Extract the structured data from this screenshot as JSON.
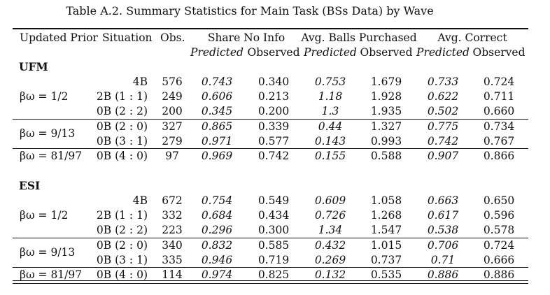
{
  "title": "Table A.2. Summary Statistics for Main Task (BSs Data) by Wave",
  "headers": {
    "updated_prior": "Updated Prior",
    "situation": "Situation",
    "obs": "Obs.",
    "share_no_info": "Share No Info",
    "avg_balls": "Avg. Balls Purchased",
    "avg_correct": "Avg. Correct",
    "predicted": "Predicted",
    "observed": "Observed"
  },
  "sections": [
    {
      "name": "UFM",
      "groups": [
        {
          "prior": "βω = 1/2",
          "rows": [
            {
              "situation": "4B",
              "obs": "576",
              "sni_pred": "0.743",
              "sni_obs": "0.340",
              "balls_pred": "0.753",
              "balls_obs": "1.679",
              "corr_pred": "0.733",
              "corr_obs": "0.724"
            },
            {
              "situation": "2B (1 : 1)",
              "obs": "249",
              "sni_pred": "0.606",
              "sni_obs": "0.213",
              "balls_pred": "1.18",
              "balls_obs": "1.928",
              "corr_pred": "0.622",
              "corr_obs": "0.711"
            },
            {
              "situation": "0B (2 : 2)",
              "obs": "200",
              "sni_pred": "0.345",
              "sni_obs": "0.200",
              "balls_pred": "1.3",
              "balls_obs": "1.935",
              "corr_pred": "0.502",
              "corr_obs": "0.660"
            }
          ]
        },
        {
          "prior": "βω = 9/13",
          "rows": [
            {
              "situation": "0B (2 : 0)",
              "obs": "327",
              "sni_pred": "0.865",
              "sni_obs": "0.339",
              "balls_pred": "0.44",
              "balls_obs": "1.327",
              "corr_pred": "0.775",
              "corr_obs": "0.734"
            },
            {
              "situation": "0B (3 : 1)",
              "obs": "279",
              "sni_pred": "0.971",
              "sni_obs": "0.577",
              "balls_pred": "0.143",
              "balls_obs": "0.993",
              "corr_pred": "0.742",
              "corr_obs": "0.767"
            }
          ]
        },
        {
          "prior": "βω = 81/97",
          "rows": [
            {
              "situation": "0B (4 : 0)",
              "obs": "97",
              "sni_pred": "0.969",
              "sni_obs": "0.742",
              "balls_pred": "0.155",
              "balls_obs": "0.588",
              "corr_pred": "0.907",
              "corr_obs": "0.866"
            }
          ]
        }
      ]
    },
    {
      "name": "ESI",
      "groups": [
        {
          "prior": "βω = 1/2",
          "rows": [
            {
              "situation": "4B",
              "obs": "672",
              "sni_pred": "0.754",
              "sni_obs": "0.549",
              "balls_pred": "0.609",
              "balls_obs": "1.058",
              "corr_pred": "0.663",
              "corr_obs": "0.650"
            },
            {
              "situation": "2B (1 : 1)",
              "obs": "332",
              "sni_pred": "0.684",
              "sni_obs": "0.434",
              "balls_pred": "0.726",
              "balls_obs": "1.268",
              "corr_pred": "0.617",
              "corr_obs": "0.596"
            },
            {
              "situation": "0B (2 : 2)",
              "obs": "223",
              "sni_pred": "0.296",
              "sni_obs": "0.300",
              "balls_pred": "1.34",
              "balls_obs": "1.547",
              "corr_pred": "0.538",
              "corr_obs": "0.578"
            }
          ]
        },
        {
          "prior": "βω = 9/13",
          "rows": [
            {
              "situation": "0B (2 : 0)",
              "obs": "340",
              "sni_pred": "0.832",
              "sni_obs": "0.585",
              "balls_pred": "0.432",
              "balls_obs": "1.015",
              "corr_pred": "0.706",
              "corr_obs": "0.724"
            },
            {
              "situation": "0B (3 : 1)",
              "obs": "335",
              "sni_pred": "0.946",
              "sni_obs": "0.719",
              "balls_pred": "0.269",
              "balls_obs": "0.737",
              "corr_pred": "0.71",
              "corr_obs": "0.666"
            }
          ]
        },
        {
          "prior": "βω = 81/97",
          "rows": [
            {
              "situation": "0B (4 : 0)",
              "obs": "114",
              "sni_pred": "0.974",
              "sni_obs": "0.825",
              "balls_pred": "0.132",
              "balls_obs": "0.535",
              "corr_pred": "0.886",
              "corr_obs": "0.886"
            }
          ]
        }
      ]
    }
  ]
}
